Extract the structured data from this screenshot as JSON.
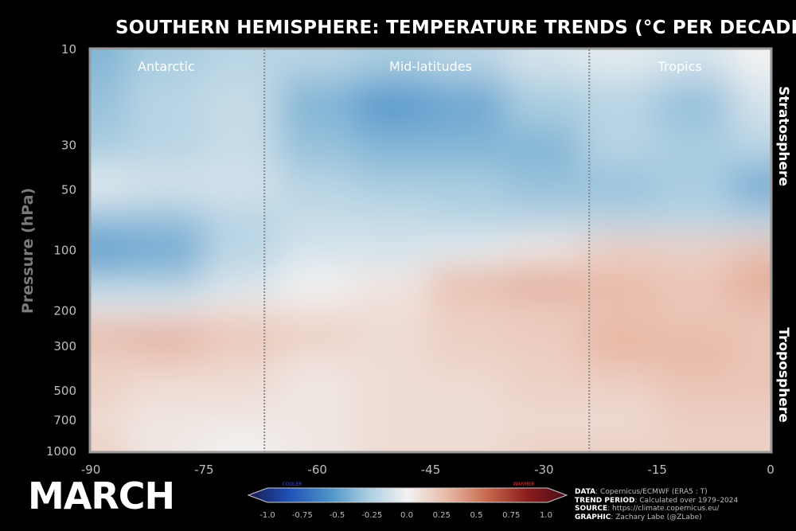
{
  "title": "SOUTHERN HEMISPHERE: TEMPERATURE TRENDS (°C PER DECADE)",
  "month_label": "MARCH",
  "chart_data": {
    "type": "heatmap",
    "title": "SOUTHERN HEMISPHERE: TEMPERATURE TRENDS (°C PER DECADE)",
    "xlabel": "",
    "ylabel": "Pressure (hPa)",
    "xlim": [
      -90,
      0
    ],
    "ylim": [
      1000,
      10
    ],
    "y_scale": "log",
    "x_ticks": [
      -90,
      -75,
      -60,
      -45,
      -30,
      -15,
      0
    ],
    "y_ticks": [
      10,
      30,
      50,
      100,
      200,
      300,
      500,
      700,
      1000
    ],
    "latitudes": [
      -90,
      -80,
      -70,
      -60,
      -50,
      -40,
      -30,
      -20,
      -10,
      0
    ],
    "pressures": [
      10,
      20,
      30,
      50,
      70,
      100,
      150,
      200,
      250,
      300,
      500,
      700,
      1000
    ],
    "values": [
      [
        -0.35,
        -0.25,
        -0.2,
        -0.2,
        -0.25,
        -0.2,
        -0.1,
        -0.05,
        -0.1,
        0.0
      ],
      [
        -0.3,
        -0.2,
        -0.15,
        -0.35,
        -0.45,
        -0.4,
        -0.25,
        -0.2,
        -0.3,
        -0.1
      ],
      [
        -0.25,
        -0.2,
        -0.15,
        -0.3,
        -0.35,
        -0.35,
        -0.35,
        -0.2,
        -0.25,
        -0.2
      ],
      [
        -0.05,
        -0.1,
        -0.1,
        -0.2,
        -0.25,
        -0.25,
        -0.3,
        -0.3,
        -0.25,
        -0.4
      ],
      [
        -0.3,
        -0.3,
        -0.2,
        -0.15,
        -0.15,
        -0.2,
        -0.2,
        -0.2,
        -0.2,
        -0.2
      ],
      [
        -0.45,
        -0.4,
        -0.2,
        -0.1,
        -0.1,
        -0.05,
        0.05,
        0.15,
        0.15,
        0.2
      ],
      [
        -0.25,
        -0.25,
        -0.1,
        0.0,
        0.05,
        0.25,
        0.3,
        0.25,
        0.2,
        0.3
      ],
      [
        0.0,
        0.0,
        0.05,
        0.05,
        0.1,
        0.15,
        0.15,
        0.2,
        0.2,
        0.2
      ],
      [
        0.35,
        0.35,
        0.25,
        0.2,
        0.1,
        0.15,
        0.2,
        0.25,
        0.2,
        0.2
      ],
      [
        0.15,
        0.2,
        0.15,
        0.1,
        0.1,
        0.15,
        0.15,
        0.25,
        0.25,
        0.2
      ],
      [
        0.15,
        0.1,
        0.1,
        0.05,
        0.1,
        0.1,
        0.15,
        0.15,
        0.2,
        0.2
      ],
      [
        0.1,
        0.05,
        0.05,
        0.05,
        0.1,
        0.1,
        0.1,
        0.1,
        0.15,
        0.15
      ],
      [
        0.15,
        0.05,
        0.0,
        0.05,
        0.1,
        0.1,
        0.15,
        0.15,
        0.15,
        0.15
      ]
    ],
    "dividers": [
      -67,
      -24
    ],
    "regions": [
      {
        "label": "Antarctic",
        "center_lat": -80
      },
      {
        "label": "Mid-latitudes",
        "center_lat": -45
      },
      {
        "label": "Tropics",
        "center_lat": -12
      }
    ],
    "side_labels": {
      "top": "Stratosphere",
      "bottom": "Troposphere"
    },
    "colorbar": {
      "ticks": [
        -1.0,
        -0.75,
        -0.5,
        -0.25,
        0.0,
        0.25,
        0.5,
        0.75,
        1.0
      ],
      "tick_labels": [
        "-1.0",
        "-0.75",
        "-0.5",
        "-0.25",
        "0.0",
        "0.25",
        "0.5",
        "0.75",
        "1.0"
      ],
      "cold_label": "COOLER",
      "warm_label": "WARMER",
      "colors": [
        "#1a1a4e",
        "#1f4fb5",
        "#4a90c8",
        "#a9cde0",
        "#f2f2f2",
        "#e8b9a6",
        "#c56a4e",
        "#8c1d1d",
        "#4a0d16"
      ]
    }
  },
  "credits": [
    {
      "key": "DATA",
      "text": ": Copernicus/ECMWF (ERA5 : T)"
    },
    {
      "key": "TREND PERIOD",
      "text": ": Calculated over 1979–2024"
    },
    {
      "key": "SOURCE",
      "text": ": https://climate.copernicus.eu/"
    },
    {
      "key": "GRAPHIC",
      "text": ": Zachary Labe (@ZLabe)"
    }
  ]
}
